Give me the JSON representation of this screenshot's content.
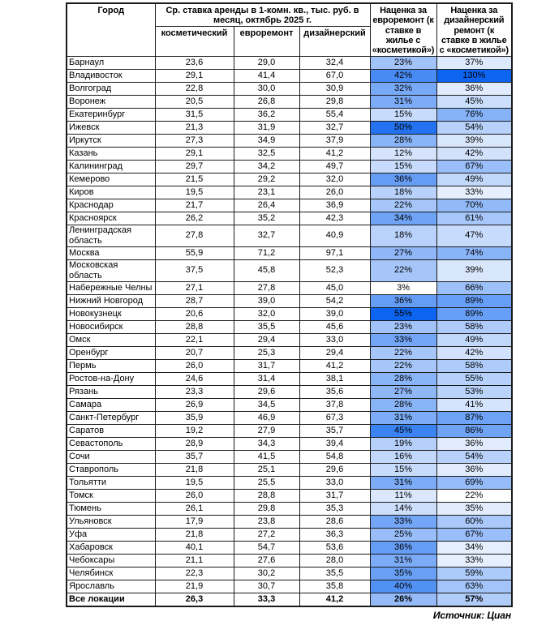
{
  "chart_data": {
    "type": "table",
    "header": {
      "city": "Город",
      "rate_group": "Ср. ставка аренды в 1-комн. кв., тыс. руб. в месяц, октябрь 2025 г.",
      "rate_subcolumns": [
        "косметический",
        "евроремонт",
        "дизайнерский"
      ],
      "markup_euro": "Наценка за евроремонт (к ставке в жилье с «косметикой»)",
      "markup_design": "Наценка за дизайнерский ремонт (к ставке в жилье с «косметикой»)"
    },
    "rows": [
      {
        "city": "Барнаул",
        "cosmetic": "23,6",
        "euro": "29,0",
        "design": "32,4",
        "markup_euro_pct": 23,
        "markup_design_pct": 37
      },
      {
        "city": "Владивосток",
        "cosmetic": "29,1",
        "euro": "41,4",
        "design": "67,0",
        "markup_euro_pct": 42,
        "markup_design_pct": 130
      },
      {
        "city": "Волгоград",
        "cosmetic": "22,8",
        "euro": "30,0",
        "design": "30,9",
        "markup_euro_pct": 32,
        "markup_design_pct": 36
      },
      {
        "city": "Воронеж",
        "cosmetic": "20,5",
        "euro": "26,8",
        "design": "29,8",
        "markup_euro_pct": 31,
        "markup_design_pct": 45
      },
      {
        "city": "Екатеринбург",
        "cosmetic": "31,5",
        "euro": "36,2",
        "design": "55,4",
        "markup_euro_pct": 15,
        "markup_design_pct": 76
      },
      {
        "city": "Ижевск",
        "cosmetic": "21,3",
        "euro": "31,9",
        "design": "32,7",
        "markup_euro_pct": 50,
        "markup_design_pct": 54
      },
      {
        "city": "Иркутск",
        "cosmetic": "27,3",
        "euro": "34,9",
        "design": "37,9",
        "markup_euro_pct": 28,
        "markup_design_pct": 39
      },
      {
        "city": "Казань",
        "cosmetic": "29,1",
        "euro": "32,5",
        "design": "41,2",
        "markup_euro_pct": 12,
        "markup_design_pct": 42
      },
      {
        "city": "Калининград",
        "cosmetic": "29,7",
        "euro": "34,2",
        "design": "49,7",
        "markup_euro_pct": 15,
        "markup_design_pct": 67
      },
      {
        "city": "Кемерово",
        "cosmetic": "21,5",
        "euro": "29,2",
        "design": "32,0",
        "markup_euro_pct": 36,
        "markup_design_pct": 49
      },
      {
        "city": "Киров",
        "cosmetic": "19,5",
        "euro": "23,1",
        "design": "26,0",
        "markup_euro_pct": 18,
        "markup_design_pct": 33
      },
      {
        "city": "Краснодар",
        "cosmetic": "21,7",
        "euro": "26,4",
        "design": "36,9",
        "markup_euro_pct": 22,
        "markup_design_pct": 70
      },
      {
        "city": "Красноярск",
        "cosmetic": "26,2",
        "euro": "35,2",
        "design": "42,3",
        "markup_euro_pct": 34,
        "markup_design_pct": 61
      },
      {
        "city": "Ленинградская область",
        "cosmetic": "27,8",
        "euro": "32,7",
        "design": "40,9",
        "markup_euro_pct": 18,
        "markup_design_pct": 47
      },
      {
        "city": "Москва",
        "cosmetic": "55,9",
        "euro": "71,2",
        "design": "97,1",
        "markup_euro_pct": 27,
        "markup_design_pct": 74
      },
      {
        "city": "Московская область",
        "cosmetic": "37,5",
        "euro": "45,8",
        "design": "52,3",
        "markup_euro_pct": 22,
        "markup_design_pct": 39
      },
      {
        "city": "Набережные Челны",
        "cosmetic": "27,1",
        "euro": "27,8",
        "design": "45,0",
        "markup_euro_pct": 3,
        "markup_design_pct": 66
      },
      {
        "city": "Нижний Новгород",
        "cosmetic": "28,7",
        "euro": "39,0",
        "design": "54,2",
        "markup_euro_pct": 36,
        "markup_design_pct": 89
      },
      {
        "city": "Новокузнецк",
        "cosmetic": "20,6",
        "euro": "32,0",
        "design": "39,0",
        "markup_euro_pct": 55,
        "markup_design_pct": 89
      },
      {
        "city": "Новосибирск",
        "cosmetic": "28,8",
        "euro": "35,5",
        "design": "45,6",
        "markup_euro_pct": 23,
        "markup_design_pct": 58
      },
      {
        "city": "Омск",
        "cosmetic": "22,1",
        "euro": "29,4",
        "design": "33,0",
        "markup_euro_pct": 33,
        "markup_design_pct": 49
      },
      {
        "city": "Оренбург",
        "cosmetic": "20,7",
        "euro": "25,3",
        "design": "29,4",
        "markup_euro_pct": 22,
        "markup_design_pct": 42
      },
      {
        "city": "Пермь",
        "cosmetic": "26,0",
        "euro": "31,7",
        "design": "41,2",
        "markup_euro_pct": 22,
        "markup_design_pct": 58
      },
      {
        "city": "Ростов-на-Дону",
        "cosmetic": "24,6",
        "euro": "31,4",
        "design": "38,1",
        "markup_euro_pct": 28,
        "markup_design_pct": 55
      },
      {
        "city": "Рязань",
        "cosmetic": "23,3",
        "euro": "29,6",
        "design": "35,6",
        "markup_euro_pct": 27,
        "markup_design_pct": 53
      },
      {
        "city": "Самара",
        "cosmetic": "26,9",
        "euro": "34,5",
        "design": "37,8",
        "markup_euro_pct": 28,
        "markup_design_pct": 41
      },
      {
        "city": "Санкт-Петербург",
        "cosmetic": "35,9",
        "euro": "46,9",
        "design": "67,3",
        "markup_euro_pct": 31,
        "markup_design_pct": 87
      },
      {
        "city": "Саратов",
        "cosmetic": "19,2",
        "euro": "27,9",
        "design": "35,7",
        "markup_euro_pct": 45,
        "markup_design_pct": 86
      },
      {
        "city": "Севастополь",
        "cosmetic": "28,9",
        "euro": "34,3",
        "design": "39,4",
        "markup_euro_pct": 19,
        "markup_design_pct": 36
      },
      {
        "city": "Сочи",
        "cosmetic": "35,7",
        "euro": "41,5",
        "design": "54,8",
        "markup_euro_pct": 16,
        "markup_design_pct": 54
      },
      {
        "city": "Ставрополь",
        "cosmetic": "21,8",
        "euro": "25,1",
        "design": "29,6",
        "markup_euro_pct": 15,
        "markup_design_pct": 36
      },
      {
        "city": "Тольятти",
        "cosmetic": "19,5",
        "euro": "25,5",
        "design": "33,0",
        "markup_euro_pct": 31,
        "markup_design_pct": 69
      },
      {
        "city": "Томск",
        "cosmetic": "26,0",
        "euro": "28,8",
        "design": "31,7",
        "markup_euro_pct": 11,
        "markup_design_pct": 22
      },
      {
        "city": "Тюмень",
        "cosmetic": "26,1",
        "euro": "29,8",
        "design": "35,3",
        "markup_euro_pct": 14,
        "markup_design_pct": 35
      },
      {
        "city": "Ульяновск",
        "cosmetic": "17,9",
        "euro": "23,8",
        "design": "28,6",
        "markup_euro_pct": 33,
        "markup_design_pct": 60
      },
      {
        "city": "Уфа",
        "cosmetic": "21,8",
        "euro": "27,2",
        "design": "36,3",
        "markup_euro_pct": 25,
        "markup_design_pct": 67
      },
      {
        "city": "Хабаровск",
        "cosmetic": "40,1",
        "euro": "54,7",
        "design": "53,6",
        "markup_euro_pct": 36,
        "markup_design_pct": 34
      },
      {
        "city": "Чебоксары",
        "cosmetic": "21,1",
        "euro": "27,6",
        "design": "28,0",
        "markup_euro_pct": 31,
        "markup_design_pct": 33
      },
      {
        "city": "Челябинск",
        "cosmetic": "22,3",
        "euro": "30,2",
        "design": "35,5",
        "markup_euro_pct": 35,
        "markup_design_pct": 59
      },
      {
        "city": "Ярославль",
        "cosmetic": "21,9",
        "euro": "30,7",
        "design": "35,8",
        "markup_euro_pct": 40,
        "markup_design_pct": 63
      }
    ],
    "total": {
      "city": "Все локации",
      "cosmetic": "26,3",
      "euro": "33,3",
      "design": "41,2",
      "markup_euro_pct": 26,
      "markup_design_pct": 57
    },
    "heatmap": {
      "min_color": "#ffffff",
      "max_color": "#0c64f0",
      "note": "per-column linear white-to-blue scale on markup percentage columns, min and max computed per column including total row"
    },
    "source": "Источник: Циан"
  }
}
